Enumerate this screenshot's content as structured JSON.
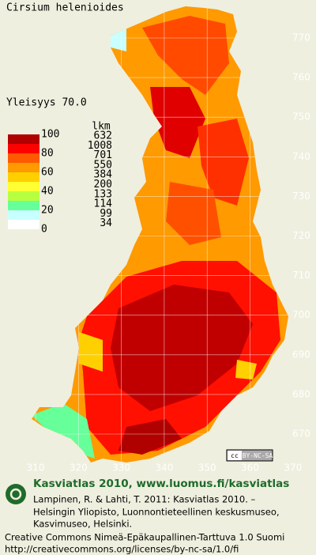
{
  "title": "Cirsium helenioides",
  "frequency": "Yleisyys 70.0",
  "legend": {
    "count_header": "lkm",
    "scale": [
      100,
      80,
      60,
      40,
      20,
      0
    ],
    "counts": [
      632,
      1008,
      701,
      550,
      384,
      200,
      133,
      114,
      99,
      34
    ],
    "colors": [
      "#b00000",
      "#ff0000",
      "#ff5a00",
      "#ff9a00",
      "#ffd000",
      "#ffff33",
      "#b8ff40",
      "#66ff99",
      "#c8ffff",
      "#ffffff"
    ]
  },
  "map": {
    "yticks": [
      770,
      760,
      750,
      740,
      730,
      720,
      710,
      700,
      690,
      680,
      670
    ],
    "xticks": [
      310,
      320,
      330,
      340,
      350,
      360,
      370
    ]
  },
  "license_badge": {
    "icon": "cc",
    "label": "BY-NC-SA"
  },
  "footer": {
    "brand": "Kasviatlas 2010, www.luomus.fi/kasviatlas",
    "citation": [
      "Lampinen, R. & Lahti, T. 2011: Kasviatlas 2010. –",
      "Helsingin Yliopisto, Luonnontieteellinen keskusmuseo,",
      "Kasvimuseo, Helsinki."
    ],
    "license": "Creative Commons Nimeä-Epäkaupallinen-Tarttuva 1.0 Suomi",
    "url": "http://creativecommons.org/licenses/by-nc-sa/1.0/fi"
  }
}
